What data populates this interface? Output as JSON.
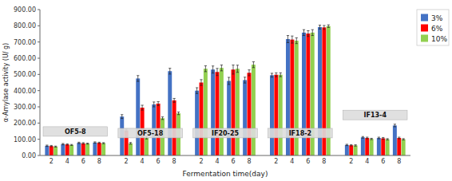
{
  "chart_data": {
    "type": "bar",
    "title": "",
    "xlabel": "Fermentation time(day)",
    "ylabel": "α-Amylase activity (U/ g)",
    "categories": [
      "2",
      "4",
      "6",
      "8",
      "2",
      "4",
      "6",
      "8",
      "2",
      "4",
      "6",
      "8",
      "2",
      "4",
      "6",
      "8",
      "2",
      "4",
      "6",
      "8"
    ],
    "series": [
      {
        "name": "3%",
        "color": "#4472C4",
        "values": [
          60,
          70,
          78,
          80,
          240,
          475,
          315,
          520,
          400,
          530,
          460,
          465,
          495,
          718,
          758,
          792,
          65,
          112,
          108,
          185
        ],
        "errors": [
          4,
          4,
          4,
          4,
          12,
          18,
          15,
          18,
          18,
          22,
          22,
          18,
          12,
          22,
          18,
          12,
          4,
          5,
          5,
          8
        ]
      },
      {
        "name": "6%",
        "color": "#FF0000",
        "values": [
          58,
          68,
          75,
          78,
          155,
          295,
          320,
          340,
          450,
          515,
          530,
          510,
          498,
          715,
          752,
          790,
          63,
          108,
          106,
          108
        ],
        "errors": [
          4,
          4,
          4,
          4,
          8,
          15,
          12,
          12,
          18,
          22,
          28,
          18,
          12,
          22,
          18,
          12,
          4,
          5,
          5,
          5
        ]
      },
      {
        "name": "10%",
        "color": "#92D050",
        "values": [
          55,
          65,
          73,
          76,
          75,
          110,
          230,
          260,
          535,
          540,
          535,
          560,
          498,
          708,
          758,
          798,
          62,
          102,
          100,
          100
        ],
        "errors": [
          3,
          3,
          3,
          3,
          5,
          8,
          8,
          8,
          18,
          18,
          22,
          18,
          12,
          18,
          18,
          8,
          4,
          4,
          4,
          4
        ]
      }
    ],
    "annotations": [
      {
        "text": "OF5-8",
        "y": 148
      },
      {
        "text": "OF5-18",
        "y": 138
      },
      {
        "text": "IF20-25",
        "y": 138
      },
      {
        "text": "IF18-2",
        "y": 138
      },
      {
        "text": "IF13-4",
        "y": 250
      }
    ],
    "ylim": [
      0,
      900
    ],
    "yticks": [
      {
        "value": 0,
        "label": "0.00"
      },
      {
        "value": 100,
        "label": "100.00"
      },
      {
        "value": 200,
        "label": "200.00"
      },
      {
        "value": 300,
        "label": "300.00"
      },
      {
        "value": 400,
        "label": "400.00"
      },
      {
        "value": 500,
        "label": "500.00"
      },
      {
        "value": 600,
        "label": "600.00"
      },
      {
        "value": 700,
        "label": "700.00"
      },
      {
        "value": 800,
        "label": "800.00"
      },
      {
        "value": 900,
        "label": "900.00"
      }
    ],
    "grid": false,
    "legend": "right"
  }
}
